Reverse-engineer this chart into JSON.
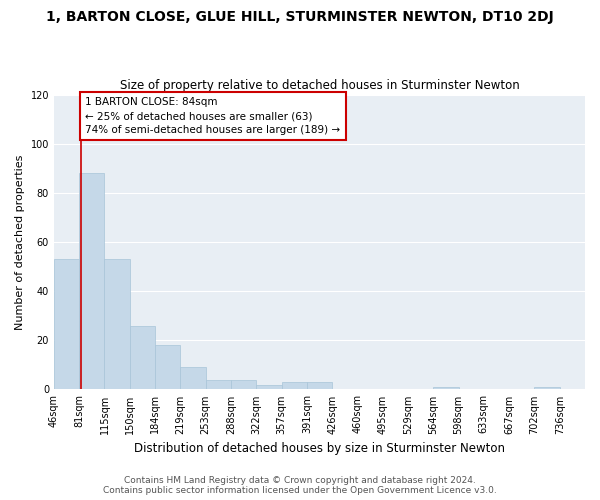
{
  "title": "1, BARTON CLOSE, GLUE HILL, STURMINSTER NEWTON, DT10 2DJ",
  "subtitle": "Size of property relative to detached houses in Sturminster Newton",
  "xlabel": "Distribution of detached houses by size in Sturminster Newton",
  "ylabel": "Number of detached properties",
  "footer_line1": "Contains HM Land Registry data © Crown copyright and database right 2024.",
  "footer_line2": "Contains public sector information licensed under the Open Government Licence v3.0.",
  "bin_labels": [
    "46sqm",
    "81sqm",
    "115sqm",
    "150sqm",
    "184sqm",
    "219sqm",
    "253sqm",
    "288sqm",
    "322sqm",
    "357sqm",
    "391sqm",
    "426sqm",
    "460sqm",
    "495sqm",
    "529sqm",
    "564sqm",
    "598sqm",
    "633sqm",
    "667sqm",
    "702sqm",
    "736sqm"
  ],
  "bar_heights": [
    53,
    88,
    53,
    26,
    18,
    9,
    4,
    4,
    2,
    3,
    3,
    0,
    0,
    0,
    0,
    1,
    0,
    0,
    0,
    1,
    0
  ],
  "bar_color": "#c5d8e8",
  "bar_edge_color": "#a8c4d8",
  "background_color": "#e8eef4",
  "fig_background_color": "#ffffff",
  "grid_color": "#ffffff",
  "annotation_box_text": "1 BARTON CLOSE: 84sqm\n← 25% of detached houses are smaller (63)\n74% of semi-detached houses are larger (189) →",
  "annotation_box_color": "#cc0000",
  "ylim": [
    0,
    120
  ],
  "yticks": [
    0,
    20,
    40,
    60,
    80,
    100,
    120
  ],
  "title_fontsize": 10,
  "subtitle_fontsize": 8.5,
  "xlabel_fontsize": 8.5,
  "ylabel_fontsize": 8,
  "tick_fontsize": 7,
  "annotation_fontsize": 7.5,
  "footer_fontsize": 6.5
}
